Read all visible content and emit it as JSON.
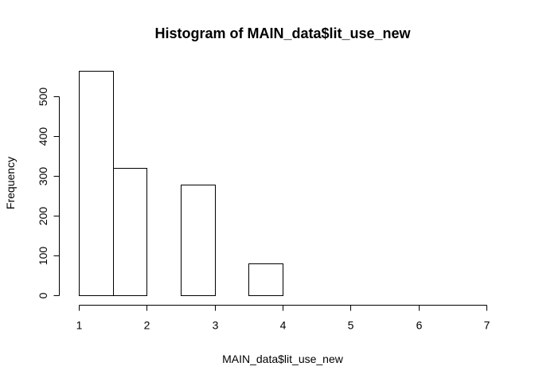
{
  "chart_data": {
    "type": "bar",
    "title": "Histogram of MAIN_data$lit_use_new",
    "xlabel": "MAIN_data$lit_use_new",
    "ylabel": "Frequency",
    "bins": [
      {
        "start": 1.0,
        "end": 1.5,
        "count": 565
      },
      {
        "start": 1.5,
        "end": 2.0,
        "count": 320
      },
      {
        "start": 2.0,
        "end": 2.5,
        "count": 0
      },
      {
        "start": 2.5,
        "end": 3.0,
        "count": 278
      },
      {
        "start": 3.0,
        "end": 3.5,
        "count": 0
      },
      {
        "start": 3.5,
        "end": 4.0,
        "count": 81
      },
      {
        "start": 4.0,
        "end": 4.5,
        "count": 0
      },
      {
        "start": 4.5,
        "end": 5.0,
        "count": 0
      },
      {
        "start": 5.0,
        "end": 5.5,
        "count": 0
      },
      {
        "start": 5.5,
        "end": 6.0,
        "count": 0
      },
      {
        "start": 6.0,
        "end": 6.5,
        "count": 0
      },
      {
        "start": 6.5,
        "end": 7.0,
        "count": 0
      }
    ],
    "x_ticks": [
      1,
      2,
      3,
      4,
      5,
      6,
      7
    ],
    "y_ticks": [
      0,
      100,
      200,
      300,
      400,
      500
    ],
    "xlim": [
      1,
      7
    ],
    "ylim": [
      0,
      565
    ],
    "grid": false,
    "legend": "none"
  }
}
